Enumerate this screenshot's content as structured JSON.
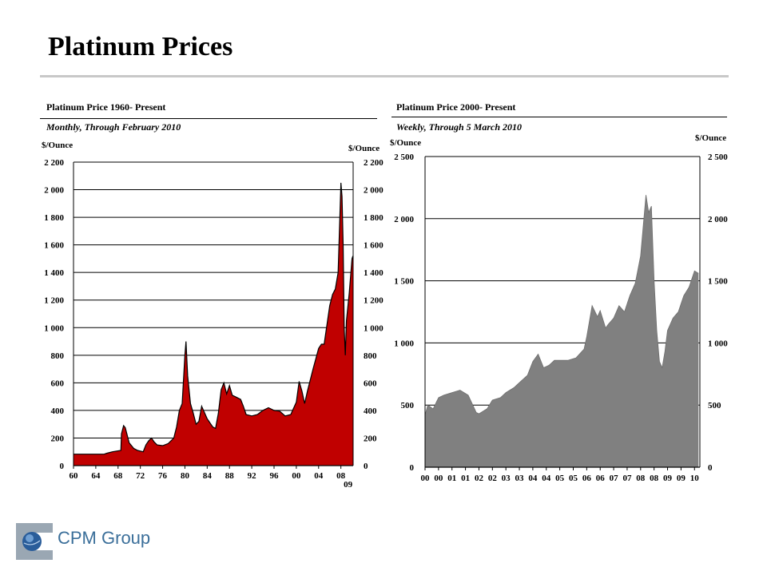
{
  "page": {
    "title": "Platinum Prices",
    "company": "CPM Group"
  },
  "chart_data": [
    {
      "type": "area",
      "title": "Platinum Price 1960- Present",
      "subtitle": "Monthly, Through February 2010",
      "ylabel_left": "$/Ounce",
      "ylabel_right": "$/Ounce",
      "ylim": [
        0,
        2200
      ],
      "yticks": [
        0,
        200,
        400,
        600,
        800,
        1000,
        1200,
        1400,
        1600,
        1800,
        2000,
        2200
      ],
      "ytick_labels": [
        "0",
        "200",
        "400",
        "600",
        "800",
        "1 000",
        "1 200",
        "1 400",
        "1 600",
        "1 800",
        "2 000",
        "2 200"
      ],
      "xlim": [
        1960,
        2010.2
      ],
      "xticks": [
        1960,
        1964,
        1968,
        1972,
        1976,
        1980,
        1984,
        1988,
        1992,
        1996,
        2000,
        2004,
        2008
      ],
      "xtick_labels": [
        "60",
        "64",
        "68",
        "72",
        "76",
        "80",
        "84",
        "88",
        "92",
        "96",
        "00",
        "04",
        "08"
      ],
      "x_extra_label": {
        "x": 2009,
        "label": "09"
      },
      "color": "#c00000",
      "series": [
        {
          "x": [
            1960,
            1965.5,
            1966,
            1967,
            1968.5,
            1968.6,
            1969,
            1969.3,
            1970,
            1970.8,
            1971.5,
            1972.5,
            1973,
            1973.5,
            1974,
            1974.5,
            1975,
            1976,
            1977,
            1978,
            1978.5,
            1979,
            1979.5,
            1980,
            1980.2,
            1980.5,
            1981,
            1981.5,
            1982,
            1982.5,
            1983,
            1984,
            1985,
            1985.5,
            1986,
            1986.5,
            1987,
            1987.5,
            1988,
            1988.5,
            1989,
            1990,
            1990.5,
            1991,
            1992,
            1993,
            1994,
            1995,
            1996,
            1997,
            1998,
            1999,
            2000,
            2000.5,
            2001,
            2001.5,
            2002,
            2003,
            2004,
            2004.5,
            2005,
            2006,
            2006.5,
            2007,
            2007.5,
            2008,
            2008.2,
            2008.4,
            2008.6,
            2008.8,
            2009,
            2009.5,
            2010,
            2010.15
          ],
          "y": [
            83,
            83,
            90,
            100,
            110,
            230,
            290,
            275,
            165,
            125,
            110,
            100,
            150,
            180,
            200,
            170,
            150,
            145,
            160,
            200,
            280,
            400,
            450,
            800,
            900,
            650,
            450,
            380,
            300,
            320,
            430,
            340,
            280,
            270,
            380,
            550,
            600,
            520,
            580,
            510,
            500,
            480,
            430,
            370,
            360,
            370,
            400,
            420,
            400,
            395,
            360,
            370,
            460,
            610,
            540,
            450,
            540,
            700,
            850,
            880,
            880,
            1160,
            1240,
            1280,
            1400,
            2050,
            1950,
            1600,
            1000,
            800,
            1050,
            1250,
            1500,
            1520
          ]
        }
      ]
    },
    {
      "type": "area",
      "title": "Platinum Price 2000- Present",
      "subtitle": "Weekly, Through 5 March 2010",
      "ylabel_left": "$/Ounce",
      "ylabel_right": "$/Ounce",
      "ylim": [
        0,
        2500
      ],
      "yticks": [
        0,
        500,
        1000,
        1500,
        2000,
        2500
      ],
      "ytick_labels": [
        "0",
        "500",
        "1 000",
        "1 500",
        "2 000",
        "2 500"
      ],
      "xlim": [
        2000,
        2010.2
      ],
      "xticks": [
        2000,
        2000.5,
        2001,
        2001.5,
        2002,
        2002.5,
        2003,
        2003.5,
        2004,
        2004.5,
        2005,
        2005.5,
        2006,
        2006.5,
        2007,
        2007.5,
        2008,
        2008.5,
        2009,
        2009.5,
        2010
      ],
      "xtick_labels": [
        "00",
        "00",
        "01",
        "01",
        "02",
        "02",
        "03",
        "03",
        "04",
        "04",
        "05",
        "05",
        "06",
        "06",
        "07",
        "07",
        "08",
        "08",
        "09",
        "09",
        "10"
      ],
      "color": "#808080",
      "series": [
        {
          "x": [
            2000,
            2000.1,
            2000.3,
            2000.5,
            2000.7,
            2001,
            2001.3,
            2001.6,
            2001.9,
            2002,
            2002.3,
            2002.5,
            2002.8,
            2003,
            2003.3,
            2003.5,
            2003.8,
            2004,
            2004.2,
            2004.4,
            2004.6,
            2004.8,
            2005,
            2005.3,
            2005.6,
            2005.9,
            2006,
            2006.2,
            2006.4,
            2006.5,
            2006.7,
            2006.8,
            2007,
            2007.2,
            2007.4,
            2007.6,
            2007.8,
            2008,
            2008.1,
            2008.2,
            2008.3,
            2008.4,
            2008.5,
            2008.6,
            2008.7,
            2008.8,
            2008.9,
            2009,
            2009.2,
            2009.4,
            2009.6,
            2009.8,
            2010,
            2010.15
          ],
          "y": [
            420,
            500,
            470,
            560,
            580,
            600,
            620,
            580,
            440,
            430,
            470,
            540,
            560,
            600,
            640,
            680,
            740,
            850,
            910,
            800,
            820,
            860,
            860,
            860,
            880,
            950,
            1050,
            1300,
            1210,
            1260,
            1120,
            1150,
            1200,
            1300,
            1250,
            1380,
            1480,
            1700,
            1950,
            2190,
            2050,
            2100,
            1500,
            1100,
            850,
            800,
            930,
            1100,
            1200,
            1250,
            1380,
            1450,
            1580,
            1560
          ]
        }
      ]
    }
  ]
}
